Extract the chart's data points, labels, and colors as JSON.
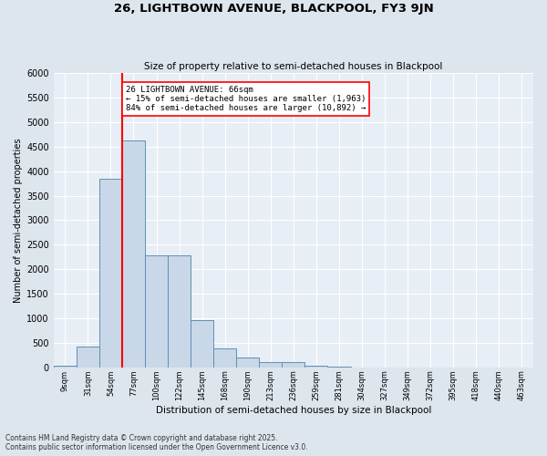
{
  "title1": "26, LIGHTBOWN AVENUE, BLACKPOOL, FY3 9JN",
  "title2": "Size of property relative to semi-detached houses in Blackpool",
  "xlabel": "Distribution of semi-detached houses by size in Blackpool",
  "ylabel": "Number of semi-detached properties",
  "categories": [
    "9sqm",
    "31sqm",
    "54sqm",
    "77sqm",
    "100sqm",
    "122sqm",
    "145sqm",
    "168sqm",
    "190sqm",
    "213sqm",
    "236sqm",
    "259sqm",
    "281sqm",
    "304sqm",
    "327sqm",
    "349sqm",
    "372sqm",
    "395sqm",
    "418sqm",
    "440sqm",
    "463sqm"
  ],
  "values": [
    30,
    430,
    3850,
    4620,
    2280,
    2280,
    970,
    390,
    200,
    110,
    100,
    30,
    10,
    5,
    3,
    2,
    1,
    1,
    1,
    1,
    1
  ],
  "bar_color": "#c8d8e8",
  "bar_edge_color": "#6090b0",
  "redline_x": 2.5,
  "annotation_text": "26 LIGHTBOWN AVENUE: 66sqm\n← 15% of semi-detached houses are smaller (1,963)\n84% of semi-detached houses are larger (10,892) →",
  "ylim": [
    0,
    6000
  ],
  "yticks": [
    0,
    500,
    1000,
    1500,
    2000,
    2500,
    3000,
    3500,
    4000,
    4500,
    5000,
    5500,
    6000
  ],
  "footer": "Contains HM Land Registry data © Crown copyright and database right 2025.\nContains public sector information licensed under the Open Government Licence v3.0.",
  "bg_color": "#dde5ed",
  "plot_bg_color": "#e8eef5"
}
